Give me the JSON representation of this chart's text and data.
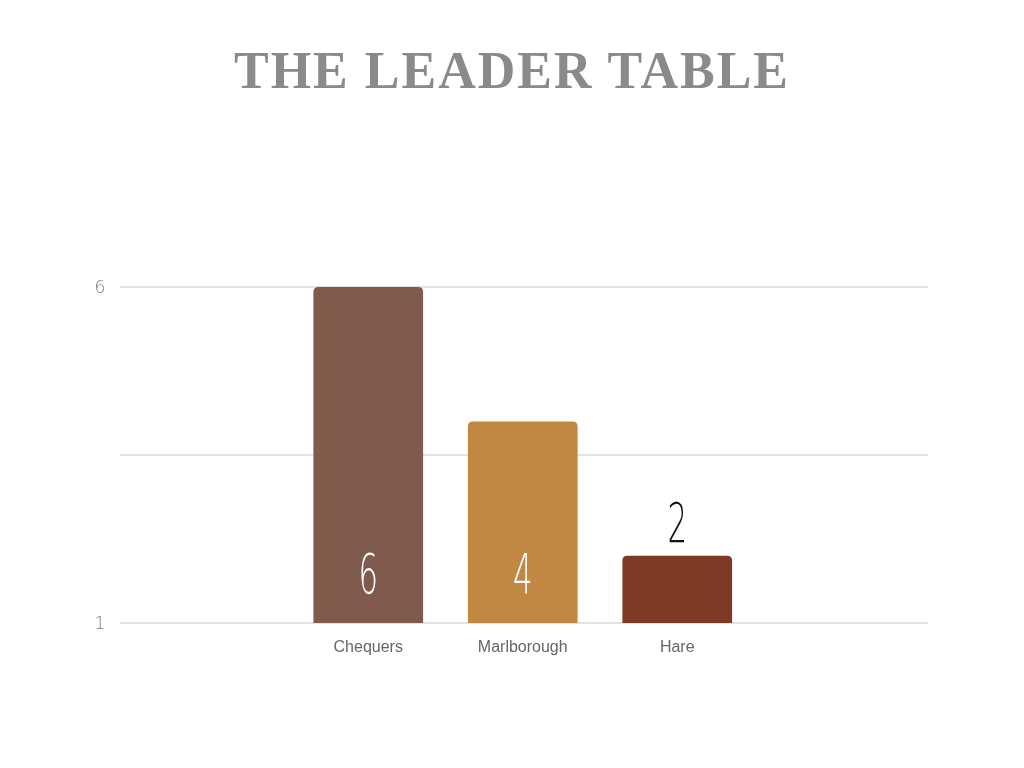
{
  "chart_data": {
    "type": "bar",
    "title": "THE LEADER TABLE",
    "categories": [
      "Chequers",
      "Marlborough",
      "Hare"
    ],
    "values": [
      6,
      4,
      2
    ],
    "colors": [
      "#7f5a4d",
      "#c18843",
      "#7e3826"
    ],
    "ylim": [
      1,
      6
    ],
    "yticks": [
      1,
      {
        "value": 3.5,
        "label": null
      },
      6
    ],
    "grid": true,
    "data_labels": true
  }
}
